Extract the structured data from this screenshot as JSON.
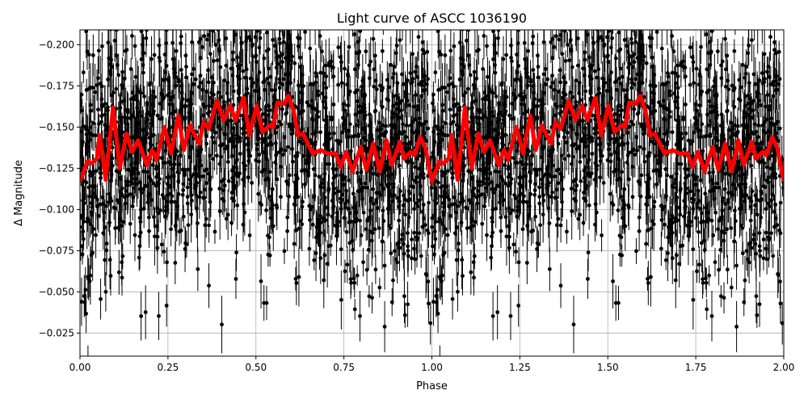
{
  "chart_data": {
    "type": "scatter",
    "title": "Light curve of ASCC 1036190",
    "xlabel": "Phase",
    "ylabel": "Δ Magnitude",
    "xlim": [
      0,
      2
    ],
    "ylim": [
      -0.209,
      -0.011
    ],
    "y_inverted": true,
    "grid": true,
    "xticks": [
      "0.00",
      "0.25",
      "0.50",
      "0.75",
      "1.00",
      "1.25",
      "1.50",
      "1.75",
      "2.00"
    ],
    "yticks": [
      "−0.200",
      "−0.175",
      "−0.150",
      "−0.125",
      "−0.100",
      "−0.075",
      "−0.050",
      "−0.025"
    ],
    "colors": {
      "points": "#000000",
      "binned_curve": "#ff0000",
      "grid": "#b0b0b0"
    },
    "series": [
      {
        "kind": "scatter-errorbar",
        "description_of_marks": "photometric points with vertical error bars, phase-folded and repeated over two cycles",
        "magnitude_range": [
          -0.21,
          -0.01
        ]
      },
      {
        "kind": "line",
        "x": [
          0,
          0.021,
          0.033,
          0.048,
          0.056,
          0.073,
          0.094,
          0.113,
          0.132,
          0.148,
          0.165,
          0.19,
          0.205,
          0.217,
          0.24,
          0.259,
          0.28,
          0.295,
          0.312,
          0.339,
          0.351,
          0.366,
          0.389,
          0.408,
          0.427,
          0.442,
          0.465,
          0.481,
          0.502,
          0.519,
          0.538,
          0.549,
          0.561,
          0.58,
          0.592,
          0.607,
          0.62,
          0.634,
          0.661,
          0.684,
          0.703,
          0.726,
          0.741,
          0.756,
          0.775,
          0.798,
          0.814,
          0.833,
          0.852,
          0.871,
          0.886,
          0.909,
          0.921,
          0.94,
          0.951,
          0.967,
          0.982,
          1.0,
          1.021,
          1.033,
          1.048,
          1.056,
          1.073,
          1.094,
          1.113,
          1.132,
          1.148,
          1.165,
          1.19,
          1.205,
          1.217,
          1.24,
          1.259,
          1.28,
          1.295,
          1.312,
          1.339,
          1.351,
          1.366,
          1.389,
          1.408,
          1.427,
          1.442,
          1.465,
          1.481,
          1.502,
          1.519,
          1.538,
          1.549,
          1.561,
          1.58,
          1.592,
          1.607,
          1.62,
          1.634,
          1.661,
          1.684,
          1.703,
          1.726,
          1.741,
          1.756,
          1.775,
          1.798,
          1.814,
          1.833,
          1.852,
          1.871,
          1.886,
          1.909,
          1.921,
          1.94,
          1.951,
          1.967,
          1.982,
          2.0
        ],
        "y": [
          -0.117,
          -0.129,
          -0.128,
          -0.131,
          -0.145,
          -0.118,
          -0.162,
          -0.125,
          -0.146,
          -0.135,
          -0.142,
          -0.127,
          -0.136,
          -0.13,
          -0.15,
          -0.134,
          -0.157,
          -0.136,
          -0.151,
          -0.14,
          -0.153,
          -0.149,
          -0.166,
          -0.154,
          -0.163,
          -0.154,
          -0.168,
          -0.145,
          -0.163,
          -0.147,
          -0.151,
          -0.15,
          -0.165,
          -0.164,
          -0.169,
          -0.16,
          -0.145,
          -0.146,
          -0.134,
          -0.136,
          -0.134,
          -0.134,
          -0.126,
          -0.135,
          -0.123,
          -0.138,
          -0.124,
          -0.14,
          -0.123,
          -0.142,
          -0.127,
          -0.141,
          -0.131,
          -0.135,
          -0.133,
          -0.144,
          -0.137,
          -0.117,
          -0.129,
          -0.128,
          -0.131,
          -0.145,
          -0.118,
          -0.162,
          -0.125,
          -0.146,
          -0.135,
          -0.142,
          -0.127,
          -0.136,
          -0.13,
          -0.15,
          -0.134,
          -0.157,
          -0.136,
          -0.151,
          -0.14,
          -0.153,
          -0.149,
          -0.166,
          -0.154,
          -0.163,
          -0.154,
          -0.168,
          -0.145,
          -0.163,
          -0.147,
          -0.151,
          -0.15,
          -0.165,
          -0.164,
          -0.169,
          -0.16,
          -0.145,
          -0.146,
          -0.134,
          -0.136,
          -0.134,
          -0.134,
          -0.126,
          -0.135,
          -0.123,
          -0.138,
          -0.124,
          -0.14,
          -0.123,
          -0.142,
          -0.127,
          -0.141,
          -0.131,
          -0.135,
          -0.133,
          -0.144,
          -0.137,
          -0.117
        ]
      }
    ]
  }
}
